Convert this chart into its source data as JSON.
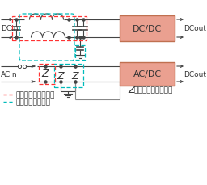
{
  "bg_color": "#ffffff",
  "salmon_color": "#EAA090",
  "red_dash": "#FF3333",
  "cyan_dash": "#00BBBB",
  "line_color": "#444444",
  "gray_color": "#888888",
  "title_top": "DC/DC",
  "title_bot": "AC/DC",
  "label_dcin": "DCin",
  "label_dcout": "DCout",
  "label_acin": "ACin",
  "label_acout": "DCout",
  "surge_label": "Z：サージアブソーバ",
  "legend_normal": "：対ノーマルモード",
  "legend_common": "：対コモンモード",
  "font_size": 6.5
}
